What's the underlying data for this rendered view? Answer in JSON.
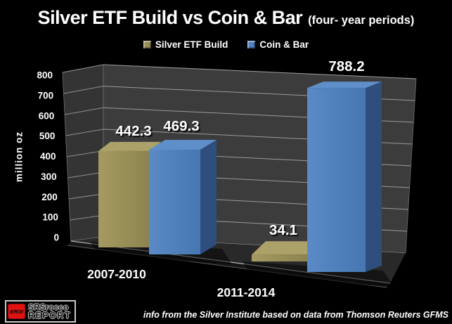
{
  "title": {
    "main": "Silver ETF Build vs Coin & Bar",
    "suffix": "(four- year periods)"
  },
  "chart_data": {
    "type": "bar",
    "style": "3d-column",
    "title": "Silver ETF Build vs Coin & Bar (four- year periods)",
    "categories": [
      "2007-2010",
      "2011-2014"
    ],
    "series": [
      {
        "name": "Silver ETF Build",
        "color": "#988E54",
        "values": [
          442.3,
          34.1
        ]
      },
      {
        "name": "Coin & Bar",
        "color": "#4E81BE",
        "values": [
          469.3,
          788.2
        ]
      }
    ],
    "ylabel": "million oz",
    "ylim": [
      0,
      800
    ],
    "yticks": [
      0,
      100,
      200,
      300,
      400,
      500,
      600,
      700,
      800
    ],
    "grid": true,
    "legend_position": "top",
    "data_labels": true,
    "background": "#000000",
    "label_color": "#FFFFFF"
  },
  "footer": {
    "source_note": "info from the Silver Institute based on data from Thomson Reuters GFMS"
  },
  "logo": {
    "badge": "EROI",
    "line1": "SRSrocco",
    "line2": "REPORT"
  }
}
